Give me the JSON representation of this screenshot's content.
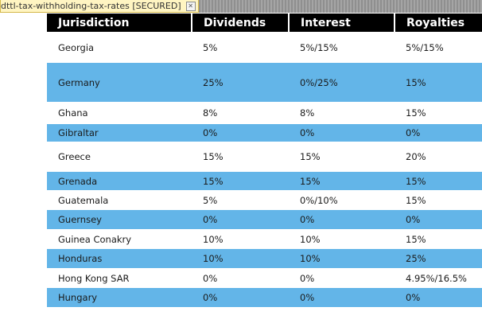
{
  "tab": {
    "title": "dttl-tax-withholding-tax-rates [SECURED]",
    "close_icon": "close-icon"
  },
  "table": {
    "headers": [
      "Jurisdiction",
      "Dividends",
      "Interest",
      "Royalties"
    ],
    "rows": [
      [
        "Georgia",
        "5%",
        "5%/15%",
        "5%/15%"
      ],
      [
        "Germany",
        "25%",
        "0%/25%",
        "15%"
      ],
      [
        "Ghana",
        "8%",
        "8%",
        "15%"
      ],
      [
        "Gibraltar",
        "0%",
        "0%",
        "0%"
      ],
      [
        "Greece",
        "15%",
        "15%",
        "20%"
      ],
      [
        "Grenada",
        "15%",
        "15%",
        "15%"
      ],
      [
        "Guatemala",
        "5%",
        "0%/10%",
        "15%"
      ],
      [
        "Guernsey",
        "0%",
        "0%",
        "0%"
      ],
      [
        "Guinea Conakry",
        "10%",
        "10%",
        "15%"
      ],
      [
        "Honduras",
        "10%",
        "10%",
        "25%"
      ],
      [
        "Hong Kong SAR",
        "0%",
        "0%",
        "4.95%/16.5%"
      ],
      [
        "Hungary",
        "0%",
        "0%",
        "0%"
      ]
    ],
    "colors": {
      "header_bg": "#000000",
      "stripe": "#63b5e8",
      "row_bg": "#ffffff"
    }
  }
}
